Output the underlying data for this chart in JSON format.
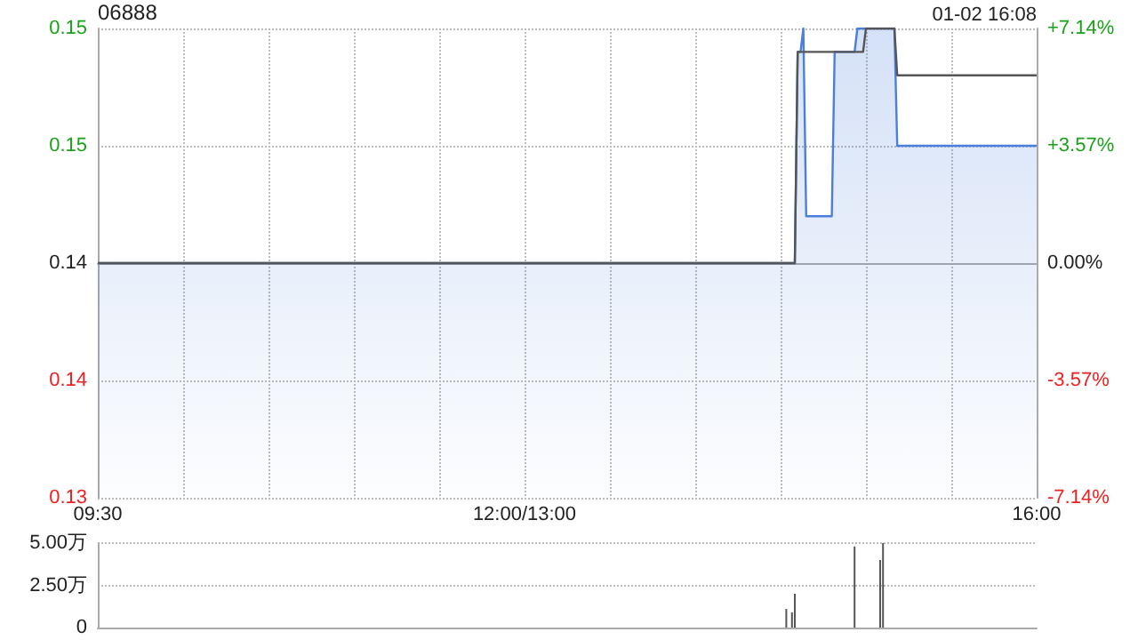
{
  "chart_data": [
    {
      "type": "area",
      "title": "06888",
      "subtitle": "01-02 16:08",
      "categories": [
        "09:30",
        null,
        null,
        null,
        null,
        null,
        null,
        null,
        null,
        null,
        null,
        null,
        null,
        null,
        null,
        null,
        null,
        null,
        null,
        null,
        null,
        null,
        null,
        null,
        null,
        null,
        null,
        null,
        null,
        null,
        null,
        null,
        null,
        null,
        null,
        null,
        null,
        null,
        null,
        null,
        null,
        null,
        null,
        null,
        null,
        null,
        null,
        null,
        null,
        null,
        null,
        null,
        null,
        null,
        null,
        null,
        null,
        null,
        null,
        null,
        null,
        null,
        null,
        null,
        null,
        null,
        null,
        null,
        null,
        null,
        null,
        null,
        null,
        null,
        null,
        null,
        null,
        null,
        null,
        null,
        null,
        null,
        null,
        null,
        null,
        null,
        null,
        null,
        null,
        null,
        null,
        null,
        null,
        null,
        null,
        null,
        null,
        null,
        null,
        null,
        null,
        null,
        null,
        null,
        null,
        null,
        null,
        null,
        null,
        null,
        null,
        null,
        null,
        null,
        null,
        null,
        null,
        null,
        null,
        null,
        null,
        null,
        null,
        null,
        null,
        null,
        null,
        null,
        null,
        null,
        null,
        null,
        null,
        null,
        null,
        null,
        null,
        null,
        null,
        null,
        null,
        null,
        null,
        null,
        null,
        null,
        null,
        null,
        null,
        null,
        "12:00/13:00",
        null,
        null,
        null,
        null,
        null,
        null,
        null,
        null,
        null,
        null,
        null,
        null,
        null,
        null,
        null,
        null,
        null,
        null,
        null,
        null,
        null,
        null,
        null,
        null,
        null,
        null,
        null,
        null,
        null,
        null,
        null,
        null,
        null,
        null,
        null,
        null,
        null,
        null,
        null,
        null,
        null,
        null,
        null,
        null,
        null,
        null,
        null,
        null,
        null,
        null,
        null,
        null,
        null,
        null,
        null,
        null,
        null,
        null,
        null,
        null,
        null,
        null,
        null,
        null,
        null,
        null,
        null,
        null,
        null,
        null,
        null,
        null,
        null,
        null,
        null,
        null,
        null,
        null,
        null,
        null,
        null,
        null,
        null,
        null,
        null,
        null,
        null,
        null,
        null,
        null,
        null,
        null,
        null,
        null,
        null,
        null,
        null,
        null,
        null,
        null,
        null,
        null,
        null,
        null,
        null,
        null,
        null,
        null,
        null,
        null,
        null,
        null,
        null,
        null,
        null,
        null,
        null,
        null,
        null,
        null,
        null,
        null,
        null,
        null,
        null,
        null,
        null,
        null,
        null,
        null,
        null,
        null,
        null,
        null,
        null,
        null,
        null,
        null,
        null,
        null,
        null,
        null,
        null,
        null,
        null,
        null,
        null,
        null,
        null,
        null,
        null,
        null,
        null,
        null,
        null,
        null,
        null,
        null,
        null,
        null,
        null,
        null,
        null,
        null,
        null,
        null,
        null,
        null,
        null,
        null,
        null,
        null,
        null,
        null,
        null,
        null,
        null,
        null,
        null,
        "16:00"
      ],
      "ylim": [
        0.13,
        0.15
      ],
      "yticks": [
        {
          "value": 0.13,
          "label": "0.13"
        },
        {
          "value": 0.135,
          "label": "0.14"
        },
        {
          "value": 0.14,
          "label": "0.14"
        },
        {
          "value": 0.145,
          "label": "0.15"
        },
        {
          "value": 0.15,
          "label": "0.15"
        }
      ],
      "y2lim": [
        -7.14,
        7.14
      ],
      "y2ticks": [
        {
          "value": -7.14,
          "label": "-7.14%"
        },
        {
          "value": -3.57,
          "label": "-3.57%"
        },
        {
          "value": 0,
          "label": "0.00%"
        },
        {
          "value": 3.57,
          "label": "+3.57%"
        },
        {
          "value": 7.14,
          "label": "+7.14%"
        }
      ],
      "grid": true,
      "marker": "none",
      "series": [
        {
          "type": "area",
          "color": "#4a7fdc",
          "values": [
            0.14,
            0.14,
            0.14,
            0.14,
            0.14,
            0.14,
            0.14,
            0.14,
            0.14,
            0.14,
            0.14,
            0.14,
            0.14,
            0.14,
            0.14,
            0.14,
            0.14,
            0.14,
            0.14,
            0.14,
            0.14,
            0.14,
            0.14,
            0.14,
            0.14,
            0.14,
            0.14,
            0.14,
            0.14,
            0.14,
            0.14,
            0.14,
            0.14,
            0.14,
            0.14,
            0.14,
            0.14,
            0.14,
            0.14,
            0.14,
            0.14,
            0.14,
            0.14,
            0.14,
            0.14,
            0.14,
            0.14,
            0.14,
            0.14,
            0.14,
            0.14,
            0.14,
            0.14,
            0.14,
            0.14,
            0.14,
            0.14,
            0.14,
            0.14,
            0.14,
            0.14,
            0.14,
            0.14,
            0.14,
            0.14,
            0.14,
            0.14,
            0.14,
            0.14,
            0.14,
            0.14,
            0.14,
            0.14,
            0.14,
            0.14,
            0.14,
            0.14,
            0.14,
            0.14,
            0.14,
            0.14,
            0.14,
            0.14,
            0.14,
            0.14,
            0.14,
            0.14,
            0.14,
            0.14,
            0.14,
            0.14,
            0.14,
            0.14,
            0.14,
            0.14,
            0.14,
            0.14,
            0.14,
            0.14,
            0.14,
            0.14,
            0.14,
            0.14,
            0.14,
            0.14,
            0.14,
            0.14,
            0.14,
            0.14,
            0.14,
            0.14,
            0.14,
            0.14,
            0.14,
            0.14,
            0.14,
            0.14,
            0.14,
            0.14,
            0.14,
            0.14,
            0.14,
            0.14,
            0.14,
            0.14,
            0.14,
            0.14,
            0.14,
            0.14,
            0.14,
            0.14,
            0.14,
            0.14,
            0.14,
            0.14,
            0.14,
            0.14,
            0.14,
            0.14,
            0.14,
            0.14,
            0.14,
            0.14,
            0.14,
            0.14,
            0.14,
            0.14,
            0.14,
            0.14,
            0.14,
            0.14,
            0.14,
            0.14,
            0.14,
            0.14,
            0.14,
            0.14,
            0.14,
            0.14,
            0.14,
            0.14,
            0.14,
            0.14,
            0.14,
            0.14,
            0.14,
            0.14,
            0.14,
            0.14,
            0.14,
            0.14,
            0.14,
            0.14,
            0.14,
            0.14,
            0.14,
            0.14,
            0.14,
            0.14,
            0.14,
            0.14,
            0.14,
            0.14,
            0.14,
            0.14,
            0.14,
            0.14,
            0.14,
            0.14,
            0.14,
            0.14,
            0.14,
            0.14,
            0.14,
            0.14,
            0.14,
            0.14,
            0.14,
            0.14,
            0.14,
            0.14,
            0.14,
            0.14,
            0.14,
            0.14,
            0.14,
            0.14,
            0.14,
            0.14,
            0.14,
            0.14,
            0.14,
            0.14,
            0.14,
            0.14,
            0.14,
            0.14,
            0.14,
            0.14,
            0.14,
            0.14,
            0.14,
            0.14,
            0.14,
            0.14,
            0.14,
            0.14,
            0.14,
            0.14,
            0.14,
            0.14,
            0.14,
            0.14,
            0.14,
            0.14,
            0.14,
            0.14,
            0.14,
            0.14,
            0.14,
            0.14,
            0.14,
            0.14,
            0.14,
            0.14,
            0.14,
            0.149,
            0.149,
            0.15,
            0.142,
            0.142,
            0.142,
            0.142,
            0.142,
            0.142,
            0.142,
            0.142,
            0.142,
            0.142,
            0.149,
            0.149,
            0.149,
            0.149,
            0.149,
            0.149,
            0.149,
            0.149,
            0.15,
            0.15,
            0.15,
            0.15,
            0.15,
            0.15,
            0.15,
            0.15,
            0.15,
            0.15,
            0.15,
            0.15,
            0.15,
            0.15,
            0.145,
            0.145,
            0.145,
            0.145,
            0.145,
            0.145,
            0.145,
            0.145,
            0.145,
            0.145,
            0.145,
            0.145,
            0.145,
            0.145,
            0.145,
            0.145,
            0.145,
            0.145,
            0.145,
            0.145,
            0.145,
            0.145,
            0.145,
            0.145,
            0.145,
            0.145,
            0.145,
            0.145,
            0.145,
            0.145,
            0.145,
            0.145,
            0.145,
            0.145,
            0.145,
            0.145,
            0.145,
            0.145,
            0.145,
            0.145,
            0.145,
            0.145,
            0.145,
            0.145,
            0.145,
            0.145,
            0.145,
            0.145,
            0.145,
            0.145
          ]
        },
        {
          "type": "line",
          "color": "#555555",
          "values": [
            0.14,
            0.14,
            0.14,
            0.14,
            0.14,
            0.14,
            0.14,
            0.14,
            0.14,
            0.14,
            0.14,
            0.14,
            0.14,
            0.14,
            0.14,
            0.14,
            0.14,
            0.14,
            0.14,
            0.14,
            0.14,
            0.14,
            0.14,
            0.14,
            0.14,
            0.14,
            0.14,
            0.14,
            0.14,
            0.14,
            0.14,
            0.14,
            0.14,
            0.14,
            0.14,
            0.14,
            0.14,
            0.14,
            0.14,
            0.14,
            0.14,
            0.14,
            0.14,
            0.14,
            0.14,
            0.14,
            0.14,
            0.14,
            0.14,
            0.14,
            0.14,
            0.14,
            0.14,
            0.14,
            0.14,
            0.14,
            0.14,
            0.14,
            0.14,
            0.14,
            0.14,
            0.14,
            0.14,
            0.14,
            0.14,
            0.14,
            0.14,
            0.14,
            0.14,
            0.14,
            0.14,
            0.14,
            0.14,
            0.14,
            0.14,
            0.14,
            0.14,
            0.14,
            0.14,
            0.14,
            0.14,
            0.14,
            0.14,
            0.14,
            0.14,
            0.14,
            0.14,
            0.14,
            0.14,
            0.14,
            0.14,
            0.14,
            0.14,
            0.14,
            0.14,
            0.14,
            0.14,
            0.14,
            0.14,
            0.14,
            0.14,
            0.14,
            0.14,
            0.14,
            0.14,
            0.14,
            0.14,
            0.14,
            0.14,
            0.14,
            0.14,
            0.14,
            0.14,
            0.14,
            0.14,
            0.14,
            0.14,
            0.14,
            0.14,
            0.14,
            0.14,
            0.14,
            0.14,
            0.14,
            0.14,
            0.14,
            0.14,
            0.14,
            0.14,
            0.14,
            0.14,
            0.14,
            0.14,
            0.14,
            0.14,
            0.14,
            0.14,
            0.14,
            0.14,
            0.14,
            0.14,
            0.14,
            0.14,
            0.14,
            0.14,
            0.14,
            0.14,
            0.14,
            0.14,
            0.14,
            0.14,
            0.14,
            0.14,
            0.14,
            0.14,
            0.14,
            0.14,
            0.14,
            0.14,
            0.14,
            0.14,
            0.14,
            0.14,
            0.14,
            0.14,
            0.14,
            0.14,
            0.14,
            0.14,
            0.14,
            0.14,
            0.14,
            0.14,
            0.14,
            0.14,
            0.14,
            0.14,
            0.14,
            0.14,
            0.14,
            0.14,
            0.14,
            0.14,
            0.14,
            0.14,
            0.14,
            0.14,
            0.14,
            0.14,
            0.14,
            0.14,
            0.14,
            0.14,
            0.14,
            0.14,
            0.14,
            0.14,
            0.14,
            0.14,
            0.14,
            0.14,
            0.14,
            0.14,
            0.14,
            0.14,
            0.14,
            0.14,
            0.14,
            0.14,
            0.14,
            0.14,
            0.14,
            0.14,
            0.14,
            0.14,
            0.14,
            0.14,
            0.14,
            0.14,
            0.14,
            0.14,
            0.14,
            0.14,
            0.14,
            0.14,
            0.14,
            0.14,
            0.14,
            0.14,
            0.14,
            0.14,
            0.14,
            0.14,
            0.14,
            0.14,
            0.14,
            0.14,
            0.14,
            0.14,
            0.14,
            0.14,
            0.14,
            0.14,
            0.14,
            0.14,
            0.14,
            0.149,
            0.149,
            0.149,
            0.149,
            0.149,
            0.149,
            0.149,
            0.149,
            0.149,
            0.149,
            0.149,
            0.149,
            0.149,
            0.149,
            0.149,
            0.149,
            0.149,
            0.149,
            0.149,
            0.149,
            0.149,
            0.149,
            0.149,
            0.149,
            0.15,
            0.15,
            0.15,
            0.15,
            0.15,
            0.15,
            0.15,
            0.15,
            0.15,
            0.15,
            0.15,
            0.148,
            0.148,
            0.148,
            0.148,
            0.148,
            0.148,
            0.148,
            0.148,
            0.148,
            0.148,
            0.148,
            0.148,
            0.148,
            0.148,
            0.148,
            0.148,
            0.148,
            0.148,
            0.148,
            0.148,
            0.148,
            0.148,
            0.148,
            0.148,
            0.148,
            0.148,
            0.148,
            0.148,
            0.148,
            0.148,
            0.148,
            0.148,
            0.148,
            0.148,
            0.148,
            0.148,
            0.148,
            0.148,
            0.148,
            0.148,
            0.148,
            0.148,
            0.148,
            0.148,
            0.148,
            0.148,
            0.148,
            0.148,
            0.148,
            0.148
          ]
        }
      ]
    },
    {
      "type": "bar",
      "tick_labels": "y",
      "grid": "y",
      "color": "#555555",
      "ylim": [
        0,
        5
      ],
      "yticks": [
        {
          "value": 0,
          "label": "0"
        },
        {
          "value": 2.5,
          "label": "2.50万"
        },
        {
          "value": 5,
          "label": "5.00万"
        }
      ],
      "values": [
        null,
        null,
        null,
        null,
        null,
        null,
        null,
        null,
        null,
        null,
        null,
        null,
        null,
        null,
        null,
        null,
        null,
        null,
        null,
        null,
        null,
        null,
        null,
        null,
        null,
        null,
        null,
        null,
        null,
        null,
        null,
        null,
        null,
        null,
        null,
        null,
        null,
        null,
        null,
        null,
        null,
        null,
        null,
        null,
        null,
        null,
        null,
        null,
        null,
        null,
        null,
        null,
        null,
        null,
        null,
        null,
        null,
        null,
        null,
        null,
        null,
        null,
        null,
        null,
        null,
        null,
        null,
        null,
        null,
        null,
        null,
        null,
        null,
        null,
        null,
        null,
        null,
        null,
        null,
        null,
        null,
        null,
        null,
        null,
        null,
        null,
        null,
        null,
        null,
        null,
        null,
        null,
        null,
        null,
        null,
        null,
        null,
        null,
        null,
        null,
        null,
        null,
        null,
        null,
        null,
        null,
        null,
        null,
        null,
        null,
        null,
        null,
        null,
        null,
        null,
        null,
        null,
        null,
        null,
        null,
        null,
        null,
        null,
        null,
        null,
        null,
        null,
        null,
        null,
        null,
        null,
        null,
        null,
        null,
        null,
        null,
        null,
        null,
        null,
        null,
        null,
        null,
        null,
        null,
        null,
        null,
        null,
        null,
        null,
        null,
        null,
        null,
        null,
        null,
        null,
        null,
        null,
        null,
        null,
        null,
        null,
        null,
        null,
        null,
        null,
        null,
        null,
        null,
        null,
        null,
        null,
        null,
        null,
        null,
        null,
        null,
        null,
        null,
        null,
        null,
        null,
        null,
        null,
        null,
        null,
        null,
        null,
        null,
        null,
        null,
        null,
        null,
        null,
        null,
        null,
        null,
        null,
        null,
        null,
        null,
        null,
        null,
        null,
        null,
        null,
        null,
        null,
        null,
        null,
        null,
        null,
        null,
        null,
        null,
        null,
        null,
        null,
        null,
        null,
        null,
        null,
        null,
        null,
        null,
        null,
        null,
        null,
        null,
        null,
        null,
        null,
        null,
        null,
        null,
        null,
        null,
        null,
        null,
        null,
        null,
        null,
        null,
        1.1,
        null,
        0.9,
        2.0,
        null,
        null,
        null,
        null,
        null,
        null,
        null,
        null,
        null,
        null,
        null,
        null,
        null,
        null,
        null,
        null,
        null,
        null,
        null,
        null,
        4.8,
        null,
        null,
        null,
        null,
        null,
        null,
        null,
        null,
        4.0,
        5.0,
        null,
        null,
        null,
        null,
        null,
        null,
        null,
        null,
        null,
        null,
        null,
        null,
        null,
        null,
        null,
        null,
        null,
        null,
        null,
        null,
        null,
        null,
        null,
        null,
        null,
        null,
        null,
        null,
        null,
        null,
        null,
        null,
        null,
        null,
        null,
        null,
        null,
        null,
        null,
        null,
        null,
        null,
        null,
        null,
        null,
        null,
        null,
        null,
        null,
        null,
        null,
        null,
        null,
        null
      ]
    }
  ]
}
